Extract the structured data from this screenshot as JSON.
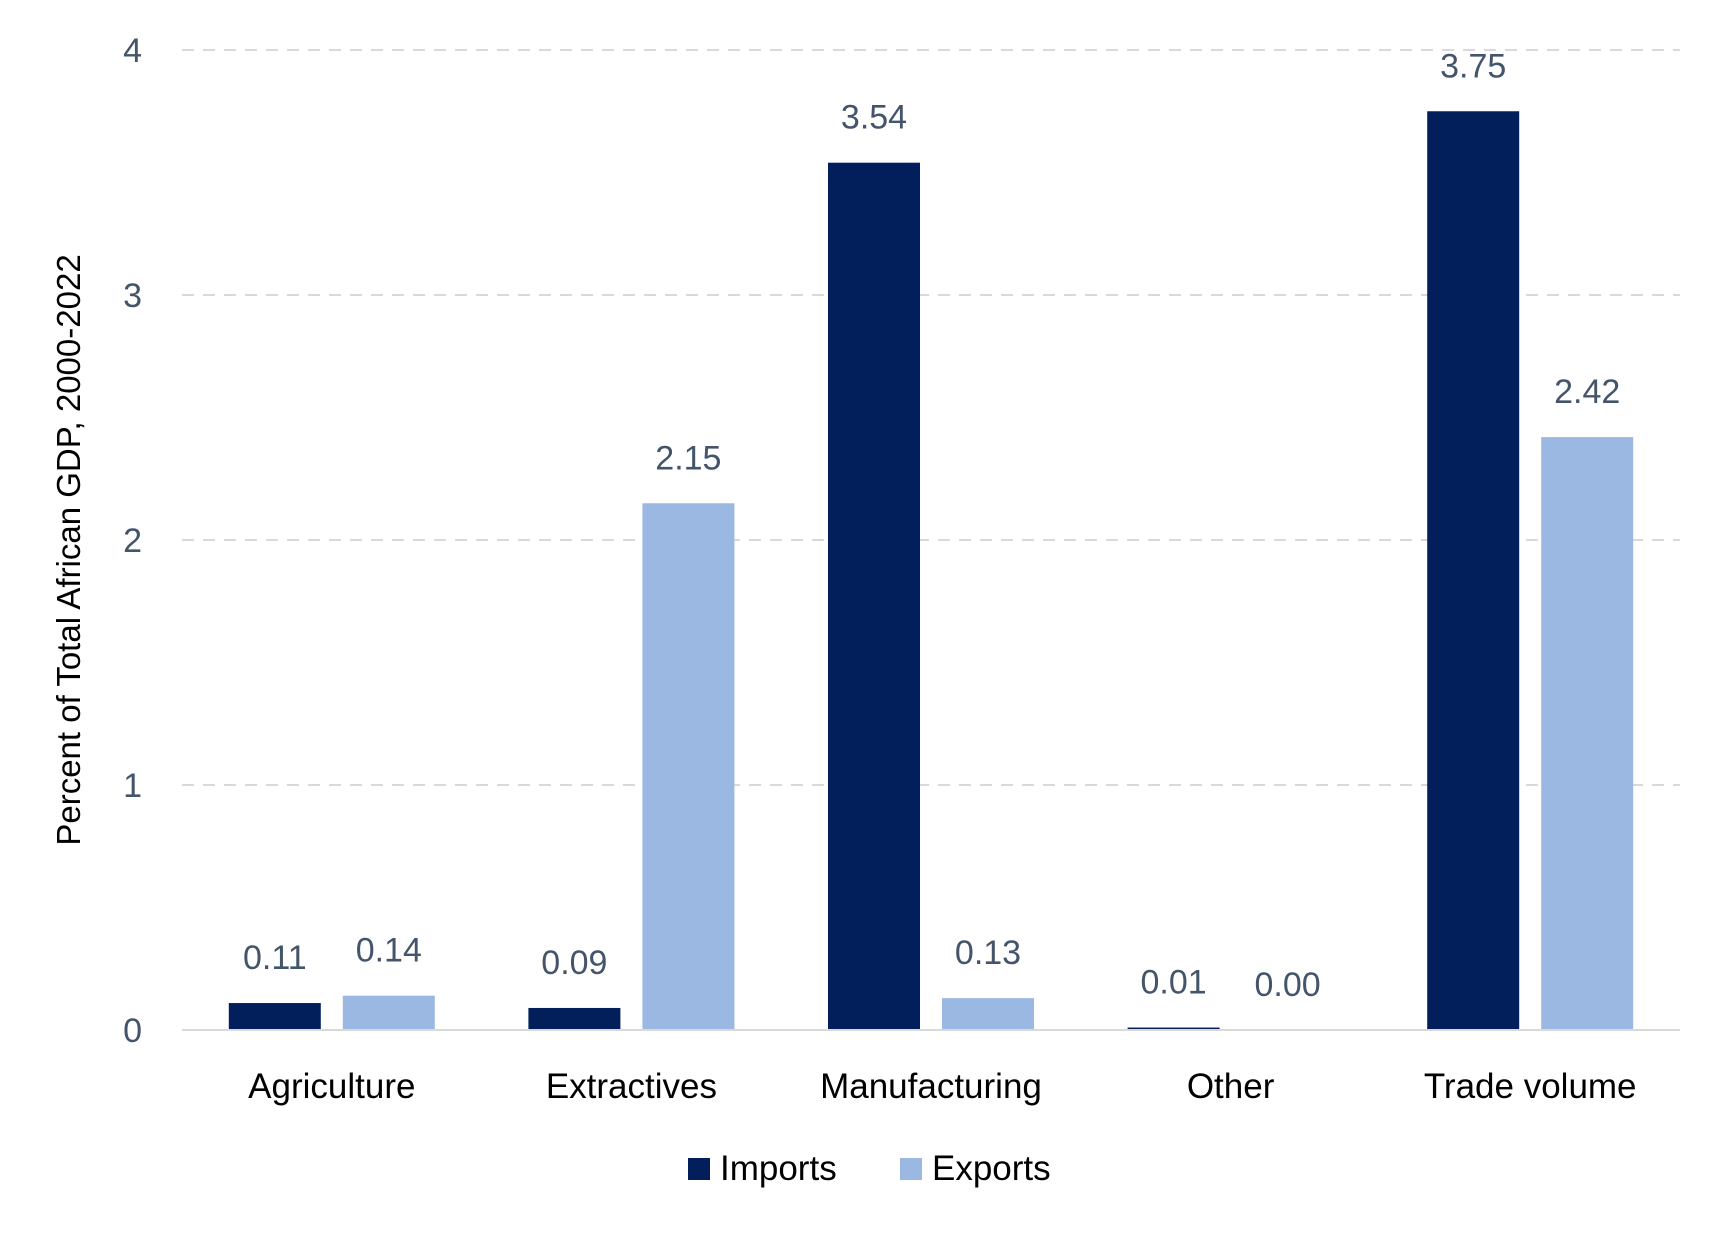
{
  "chart_data": {
    "type": "bar",
    "title": "",
    "xlabel": "",
    "ylabel": "Percent of Total African GDP, 2000-2022",
    "categories": [
      "Agriculture",
      "Extractives",
      "Manufacturing",
      "Other",
      "Trade volume"
    ],
    "series": [
      {
        "name": "Imports",
        "color": "#021f5c",
        "values": [
          0.11,
          0.09,
          3.54,
          0.01,
          3.75
        ]
      },
      {
        "name": "Exports",
        "color": "#9ab8e2",
        "values": [
          0.14,
          2.15,
          0.13,
          0.0,
          2.42
        ]
      }
    ],
    "data_labels": [
      [
        "0.11",
        "0.09",
        "3.54",
        "0.01",
        "3.75"
      ],
      [
        "0.14",
        "2.15",
        "0.13",
        "0.00",
        "2.42"
      ]
    ],
    "ylim": [
      0,
      4
    ],
    "yticks": [
      "0",
      "1",
      "2",
      "3",
      "4"
    ],
    "grid": true,
    "legend_position": "bottom"
  }
}
